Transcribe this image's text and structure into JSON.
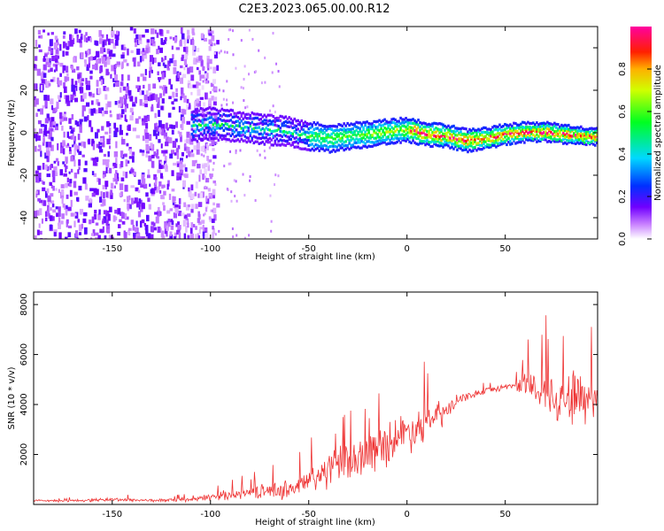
{
  "title": "C2E3.2023.065.00.00.R12",
  "chart_data": [
    {
      "type": "heatmap",
      "name": "spectrogram",
      "xlabel": "Height of straight line (km)",
      "ylabel": "Frequency (Hz)",
      "xlim": [
        -190,
        97
      ],
      "ylim": [
        -50,
        50
      ],
      "xticks": [
        -150,
        -100,
        -50,
        0,
        50
      ],
      "yticks": [
        -40,
        -20,
        0,
        20,
        40
      ],
      "colorbar": {
        "label": "Normalized spectral amplitude",
        "range": [
          0.0,
          1.0
        ],
        "ticks": [
          0.0,
          0.2,
          0.4,
          0.6,
          0.8
        ]
      },
      "ridge": {
        "x": [
          -110,
          -100,
          -90,
          -80,
          -70,
          -60,
          -50,
          -40,
          -30,
          -20,
          -10,
          0,
          10,
          20,
          30,
          40,
          50,
          60,
          70,
          80,
          90,
          97
        ],
        "y": [
          4,
          5,
          4,
          3,
          2,
          1,
          -1,
          -2,
          -1,
          0,
          1,
          2,
          0,
          -1,
          -3,
          -2,
          0,
          1,
          1,
          0,
          -1,
          -1
        ]
      },
      "noise_region": [
        -190,
        -105
      ]
    },
    {
      "type": "line",
      "name": "snr",
      "xlabel": "Height of straight line (km)",
      "ylabel": "SNR (10 * v/v)",
      "xlim": [
        -190,
        97
      ],
      "ylim": [
        0,
        8500
      ],
      "xticks": [
        -150,
        -100,
        -50,
        0,
        50
      ],
      "yticks": [
        2000,
        4000,
        6000,
        8000
      ],
      "series": [
        {
          "name": "SNR",
          "color": "#ee3333",
          "x": [
            -190,
            -170,
            -150,
            -130,
            -110,
            -100,
            -90,
            -80,
            -70,
            -60,
            -50,
            -40,
            -30,
            -20,
            -10,
            0,
            10,
            20,
            25,
            30,
            40,
            50,
            55,
            60,
            70,
            80,
            90,
            97
          ],
          "values": [
            150,
            150,
            200,
            160,
            180,
            300,
            400,
            480,
            550,
            600,
            900,
            1400,
            1700,
            2000,
            2500,
            2900,
            3300,
            3700,
            4100,
            4300,
            4550,
            4700,
            4800,
            4750,
            4500,
            4300,
            4300,
            4300
          ],
          "spread": [
            100,
            100,
            150,
            120,
            150,
            300,
            400,
            500,
            600,
            800,
            1200,
            1500,
            1600,
            1700,
            1800,
            1700,
            1500,
            1000,
            500,
            300,
            250,
            250,
            300,
            1200,
            1800,
            2200,
            2600,
            2200
          ]
        }
      ]
    }
  ]
}
